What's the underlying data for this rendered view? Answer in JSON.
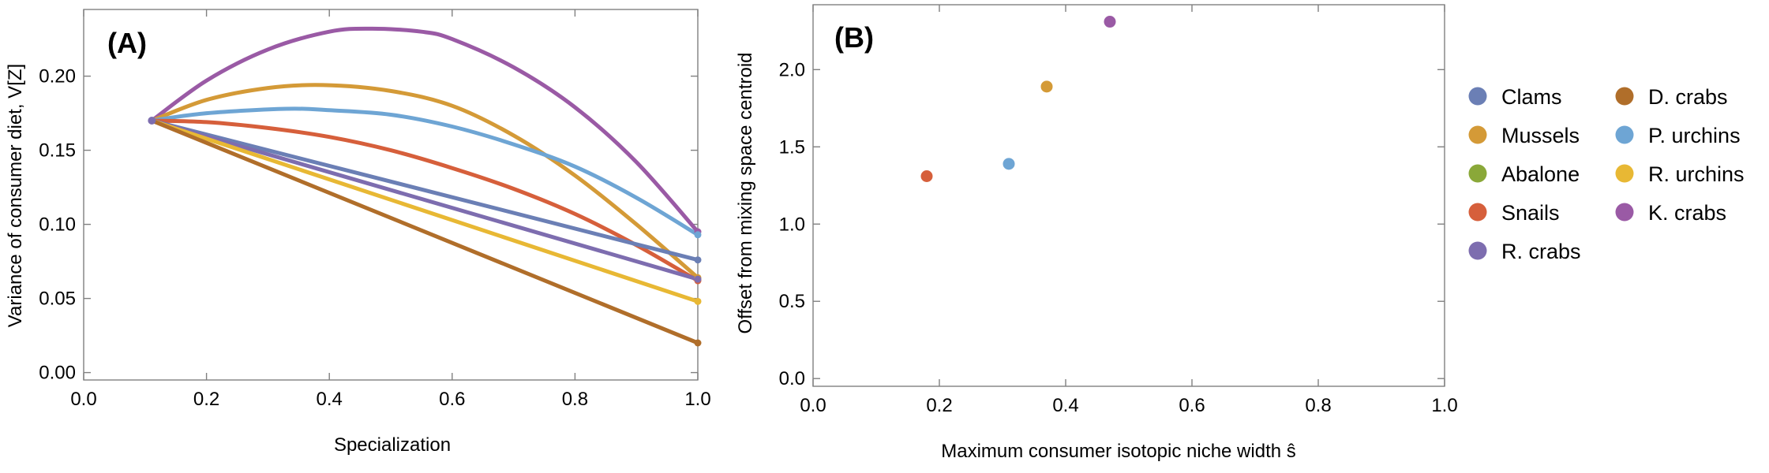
{
  "colors": {
    "Clams": "#6b7fb5",
    "Mussels": "#d49a37",
    "Abalone": "#8aa839",
    "Snails": "#d65f3b",
    "R. crabs": "#7d6daf",
    "D. crabs": "#b06e2a",
    "P. urchins": "#6ea5d4",
    "R. urchins": "#e8b834",
    "K. crabs": "#9a5aa5"
  },
  "chart_data": [
    {
      "type": "line",
      "panel_label": "(A)",
      "title": "",
      "xlabel": "Specialization",
      "ylabel": "Variance of consumer diet, V[Z]",
      "xlim": [
        0.0,
        1.0
      ],
      "ylim": [
        -0.005,
        0.245
      ],
      "xticks": [
        "0.0",
        "0.2",
        "0.4",
        "0.6",
        "0.8",
        "1.0"
      ],
      "yticks": [
        "0.00",
        "0.05",
        "0.10",
        "0.15",
        "0.20"
      ],
      "series": [
        {
          "name": "K. crabs",
          "x": [
            0.111,
            0.2,
            0.3,
            0.4,
            0.47,
            0.55,
            0.6,
            0.7,
            0.8,
            0.9,
            1.0
          ],
          "y": [
            0.17,
            0.197,
            0.218,
            0.23,
            0.232,
            0.23,
            0.225,
            0.206,
            0.179,
            0.142,
            0.095
          ]
        },
        {
          "name": "Mussels",
          "x": [
            0.111,
            0.2,
            0.3,
            0.39,
            0.5,
            0.6,
            0.7,
            0.8,
            0.9,
            1.0
          ],
          "y": [
            0.17,
            0.184,
            0.192,
            0.194,
            0.19,
            0.18,
            0.16,
            0.133,
            0.1,
            0.064
          ]
        },
        {
          "name": "P. urchins",
          "x": [
            0.111,
            0.2,
            0.33,
            0.4,
            0.5,
            0.6,
            0.7,
            0.8,
            0.9,
            1.0
          ],
          "y": [
            0.17,
            0.175,
            0.178,
            0.177,
            0.174,
            0.166,
            0.154,
            0.139,
            0.118,
            0.093
          ]
        },
        {
          "name": "Snails",
          "x": [
            0.111,
            0.2,
            0.3,
            0.4,
            0.5,
            0.6,
            0.7,
            0.8,
            0.9,
            1.0
          ],
          "y": [
            0.17,
            0.169,
            0.165,
            0.159,
            0.15,
            0.138,
            0.124,
            0.107,
            0.086,
            0.062
          ]
        },
        {
          "name": "Clams",
          "x": [
            0.111,
            1.0
          ],
          "y": [
            0.17,
            0.076
          ]
        },
        {
          "name": "R. crabs",
          "x": [
            0.111,
            1.0
          ],
          "y": [
            0.17,
            0.063
          ]
        },
        {
          "name": "R. urchins",
          "x": [
            0.111,
            1.0
          ],
          "y": [
            0.17,
            0.048
          ]
        },
        {
          "name": "D. crabs",
          "x": [
            0.111,
            1.0
          ],
          "y": [
            0.17,
            0.02
          ]
        }
      ]
    },
    {
      "type": "scatter",
      "panel_label": "(B)",
      "title": "",
      "xlabel": "Maximum consumer isotopic niche width ŝ",
      "ylabel": "Offset from mixing space centroid",
      "xlim": [
        0.0,
        1.0
      ],
      "ylim": [
        -0.05,
        2.42
      ],
      "xticks": [
        "0.0",
        "0.2",
        "0.4",
        "0.6",
        "0.8",
        "1.0"
      ],
      "yticks": [
        "0.0",
        "0.5",
        "1.0",
        "1.5",
        "2.0"
      ],
      "points": [
        {
          "name": "Snails",
          "x": 0.18,
          "y": 1.31
        },
        {
          "name": "P. urchins",
          "x": 0.31,
          "y": 1.39
        },
        {
          "name": "Mussels",
          "x": 0.37,
          "y": 1.89
        },
        {
          "name": "K. crabs",
          "x": 0.47,
          "y": 2.31
        }
      ]
    }
  ],
  "legend": {
    "columns": [
      [
        "Clams",
        "Mussels",
        "Abalone",
        "Snails",
        "R. crabs"
      ],
      [
        "D. crabs",
        "P. urchins",
        "R. urchins",
        "K. crabs"
      ]
    ]
  }
}
